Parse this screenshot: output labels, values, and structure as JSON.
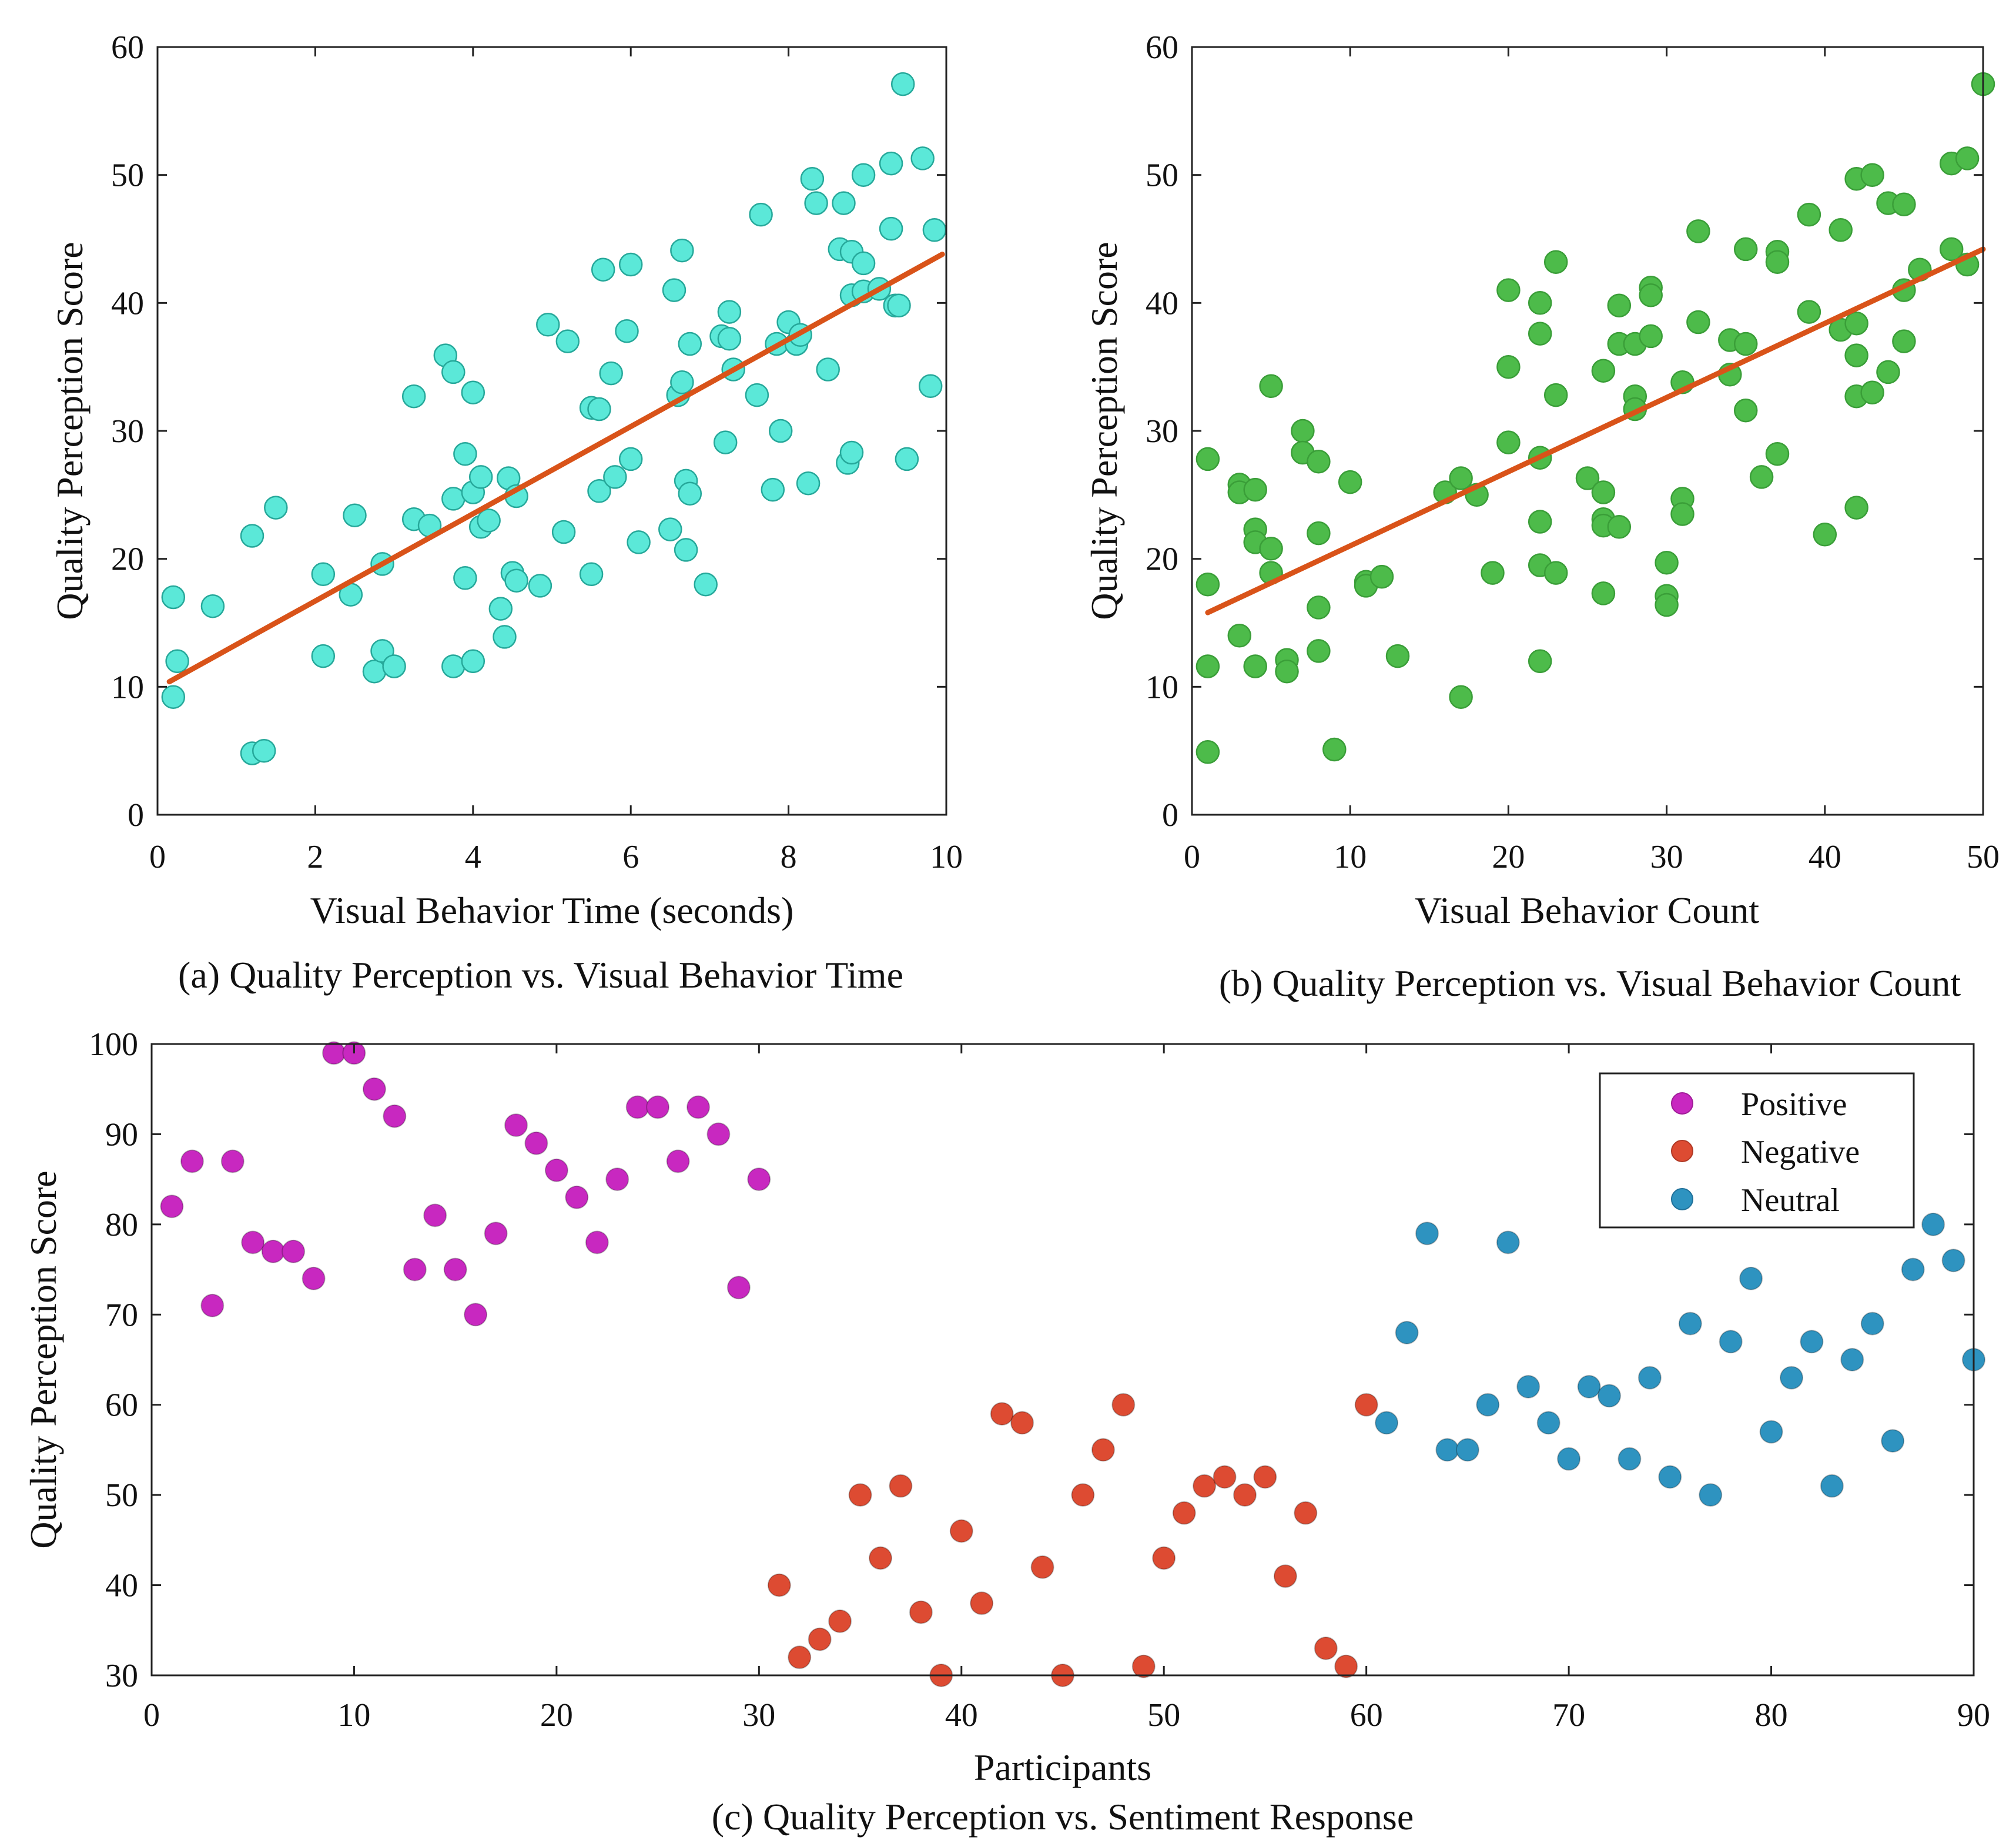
{
  "figure": {
    "panels": [
      {
        "id": "a",
        "caption": "(a) Quality Perception vs. Visual Behavior Time",
        "xlabel": "Visual Behavior Time (seconds)",
        "ylabel": "Quality Perception Score",
        "xticks": [
          "0",
          "2",
          "4",
          "6",
          "8",
          "10"
        ],
        "yticks": [
          "0",
          "10",
          "20",
          "30",
          "40",
          "50",
          "60"
        ]
      },
      {
        "id": "b",
        "caption": "(b) Quality Perception vs. Visual Behavior Count",
        "xlabel": "Visual Behavior Count",
        "ylabel": "Quality Perception Score",
        "xticks": [
          "0",
          "10",
          "20",
          "30",
          "40",
          "50"
        ],
        "yticks": [
          "0",
          "10",
          "20",
          "30",
          "40",
          "50",
          "60"
        ]
      },
      {
        "id": "c",
        "caption": "(c) Quality Perception vs. Sentiment Response",
        "xlabel": "Participants",
        "ylabel": "Quality Perception Score",
        "xticks": [
          "0",
          "10",
          "20",
          "30",
          "40",
          "50",
          "60",
          "70",
          "80",
          "90"
        ],
        "yticks": [
          "30",
          "40",
          "50",
          "60",
          "70",
          "80",
          "90",
          "100"
        ],
        "legend": [
          "Positive",
          "Negative",
          "Neutral"
        ]
      }
    ]
  },
  "chart_data": [
    {
      "type": "scatter",
      "title": "(a) Quality Perception vs. Visual Behavior Time",
      "xlabel": "Visual Behavior Time (seconds)",
      "ylabel": "Quality Perception Score",
      "xlim": [
        0,
        10
      ],
      "ylim": [
        0,
        60
      ],
      "grid": false,
      "marker_color": "#5be8d8",
      "marker_edge": "#26a89a",
      "points": [
        [
          0.2,
          17
        ],
        [
          0.25,
          12
        ],
        [
          0.2,
          9.2
        ],
        [
          0.7,
          16.3
        ],
        [
          1.2,
          4.8
        ],
        [
          1.35,
          5
        ],
        [
          1.2,
          21.8
        ],
        [
          1.5,
          24
        ],
        [
          2.1,
          18.8
        ],
        [
          2.1,
          12.4
        ],
        [
          2.45,
          17.2
        ],
        [
          2.5,
          23.4
        ],
        [
          2.75,
          11.2
        ],
        [
          2.85,
          19.6
        ],
        [
          2.85,
          12.8
        ],
        [
          3.0,
          11.6
        ],
        [
          3.25,
          32.7
        ],
        [
          3.25,
          23.1
        ],
        [
          3.45,
          22.6
        ],
        [
          3.65,
          35.9
        ],
        [
          3.75,
          24.7
        ],
        [
          3.75,
          34.6
        ],
        [
          3.75,
          11.6
        ],
        [
          3.9,
          28.2
        ],
        [
          3.9,
          18.5
        ],
        [
          4.0,
          12
        ],
        [
          4.0,
          25.2
        ],
        [
          4.0,
          33
        ],
        [
          4.1,
          26.4
        ],
        [
          4.1,
          22.5
        ],
        [
          4.2,
          23
        ],
        [
          4.35,
          16.1
        ],
        [
          4.4,
          13.9
        ],
        [
          4.45,
          26.3
        ],
        [
          4.5,
          18.9
        ],
        [
          4.55,
          24.9
        ],
        [
          4.55,
          18.3
        ],
        [
          4.85,
          17.9
        ],
        [
          4.95,
          38.3
        ],
        [
          5.2,
          37
        ],
        [
          5.15,
          22.1
        ],
        [
          5.5,
          18.8
        ],
        [
          5.5,
          31.8
        ],
        [
          5.6,
          31.7
        ],
        [
          5.65,
          42.6
        ],
        [
          5.6,
          25.3
        ],
        [
          5.75,
          34.5
        ],
        [
          5.8,
          26.4
        ],
        [
          5.95,
          37.8
        ],
        [
          6.0,
          43
        ],
        [
          6.0,
          27.8
        ],
        [
          6.1,
          21.3
        ],
        [
          6.5,
          22.3
        ],
        [
          6.55,
          41
        ],
        [
          6.6,
          32.8
        ],
        [
          6.65,
          44.1
        ],
        [
          6.65,
          33.8
        ],
        [
          6.7,
          26.1
        ],
        [
          6.7,
          20.7
        ],
        [
          6.75,
          25.1
        ],
        [
          6.75,
          36.8
        ],
        [
          6.95,
          18
        ],
        [
          7.15,
          37.4
        ],
        [
          7.2,
          29.1
        ],
        [
          7.25,
          39.3
        ],
        [
          7.25,
          37.2
        ],
        [
          7.3,
          34.8
        ],
        [
          7.6,
          32.8
        ],
        [
          7.65,
          46.9
        ],
        [
          7.8,
          25.4
        ],
        [
          7.85,
          36.8
        ],
        [
          7.9,
          30
        ],
        [
          8.0,
          38.5
        ],
        [
          8.1,
          36.8
        ],
        [
          8.15,
          37.5
        ],
        [
          8.25,
          25.9
        ],
        [
          8.3,
          49.7
        ],
        [
          8.35,
          47.8
        ],
        [
          8.5,
          34.8
        ],
        [
          8.65,
          44.2
        ],
        [
          8.7,
          47.8
        ],
        [
          8.75,
          27.5
        ],
        [
          8.8,
          44
        ],
        [
          8.8,
          40.6
        ],
        [
          8.8,
          28.3
        ],
        [
          8.95,
          50
        ],
        [
          8.95,
          43.1
        ],
        [
          8.95,
          40.9
        ],
        [
          9.15,
          41.1
        ],
        [
          9.3,
          50.9
        ],
        [
          9.3,
          45.8
        ],
        [
          9.35,
          39.8
        ],
        [
          9.4,
          39.8
        ],
        [
          9.45,
          57.1
        ],
        [
          9.5,
          27.8
        ],
        [
          9.7,
          51.3
        ],
        [
          9.8,
          33.5
        ],
        [
          9.85,
          45.7
        ]
      ],
      "trend_line": {
        "x": [
          0.15,
          9.95
        ],
        "y": [
          10.4,
          43.8
        ],
        "color": "#d95319"
      }
    },
    {
      "type": "scatter",
      "title": "(b) Quality Perception vs. Visual Behavior Count",
      "xlabel": "Visual Behavior Count",
      "ylabel": "Quality Perception Score",
      "xlim": [
        0,
        50
      ],
      "ylim": [
        0,
        60
      ],
      "grid": false,
      "marker_color": "#4dbb4a",
      "marker_edge": "#3a9e38",
      "points": [
        [
          1,
          27.8
        ],
        [
          1,
          18
        ],
        [
          1,
          11.6
        ],
        [
          1,
          4.9
        ],
        [
          3,
          25.8
        ],
        [
          3,
          25.2
        ],
        [
          3,
          14
        ],
        [
          4,
          25.4
        ],
        [
          4,
          22.3
        ],
        [
          4,
          21.3
        ],
        [
          4,
          11.6
        ],
        [
          5,
          33.5
        ],
        [
          5,
          20.8
        ],
        [
          5,
          18.9
        ],
        [
          6,
          12.1
        ],
        [
          6,
          11.2
        ],
        [
          7,
          30
        ],
        [
          7,
          28.3
        ],
        [
          8,
          27.6
        ],
        [
          8,
          22
        ],
        [
          8,
          16.2
        ],
        [
          8,
          12.8
        ],
        [
          9,
          5.1
        ],
        [
          10,
          26
        ],
        [
          11,
          18.2
        ],
        [
          11,
          17.9
        ],
        [
          12,
          18.6
        ],
        [
          13,
          12.4
        ],
        [
          16,
          25.2
        ],
        [
          17,
          26.3
        ],
        [
          17,
          9.2
        ],
        [
          18,
          25
        ],
        [
          19,
          18.9
        ],
        [
          20,
          41
        ],
        [
          20,
          35
        ],
        [
          20,
          29.1
        ],
        [
          22,
          40
        ],
        [
          22,
          37.6
        ],
        [
          22,
          27.9
        ],
        [
          22,
          22.9
        ],
        [
          22,
          19.5
        ],
        [
          22,
          12
        ],
        [
          23,
          43.2
        ],
        [
          23,
          32.8
        ],
        [
          23,
          18.9
        ],
        [
          25,
          26.3
        ],
        [
          26,
          34.7
        ],
        [
          26,
          25.2
        ],
        [
          26,
          23.1
        ],
        [
          26,
          22.6
        ],
        [
          26,
          17.3
        ],
        [
          27,
          39.8
        ],
        [
          27,
          36.8
        ],
        [
          27,
          22.5
        ],
        [
          28,
          36.8
        ],
        [
          28,
          32.7
        ],
        [
          28,
          31.7
        ],
        [
          29,
          41.2
        ],
        [
          29,
          40.6
        ],
        [
          29,
          37.4
        ],
        [
          30,
          19.7
        ],
        [
          30,
          17.1
        ],
        [
          30,
          16.4
        ],
        [
          31,
          33.8
        ],
        [
          31,
          24.7
        ],
        [
          31,
          23.5
        ],
        [
          32,
          45.6
        ],
        [
          32,
          38.5
        ],
        [
          34,
          37.1
        ],
        [
          34,
          34.4
        ],
        [
          35,
          44.2
        ],
        [
          35,
          36.8
        ],
        [
          35,
          31.6
        ],
        [
          36,
          26.4
        ],
        [
          37,
          44
        ],
        [
          37,
          43.2
        ],
        [
          37,
          28.2
        ],
        [
          39,
          46.9
        ],
        [
          39,
          39.3
        ],
        [
          40,
          21.9
        ],
        [
          41,
          45.7
        ],
        [
          41,
          37.9
        ],
        [
          42,
          49.7
        ],
        [
          42,
          38.4
        ],
        [
          42,
          35.9
        ],
        [
          42,
          32.7
        ],
        [
          42,
          24
        ],
        [
          43,
          50
        ],
        [
          43,
          33
        ],
        [
          44,
          47.8
        ],
        [
          44,
          34.6
        ],
        [
          45,
          47.7
        ],
        [
          45,
          41
        ],
        [
          45,
          37
        ],
        [
          46,
          42.6
        ],
        [
          48,
          50.9
        ],
        [
          48,
          44.2
        ],
        [
          49,
          51.3
        ],
        [
          49,
          43
        ],
        [
          50,
          57.1
        ]
      ],
      "trend_line": {
        "x": [
          1,
          50
        ],
        "y": [
          15.8,
          44.2
        ],
        "color": "#d95319"
      }
    },
    {
      "type": "scatter",
      "title": "(c) Quality Perception vs. Sentiment Response",
      "xlabel": "Participants",
      "ylabel": "Quality Perception Score",
      "xlim": [
        0,
        90
      ],
      "ylim": [
        30,
        100
      ],
      "grid": false,
      "legend_position": "top-right",
      "series": [
        {
          "name": "Positive",
          "color": "#c828c0",
          "x": [
            1,
            2,
            3,
            4,
            5,
            6,
            7,
            8,
            9,
            10,
            11,
            12,
            13,
            14,
            15,
            16,
            17,
            18,
            19,
            20,
            21,
            22,
            23,
            24,
            25,
            26,
            27,
            28,
            29,
            30
          ],
          "y": [
            82,
            87,
            71,
            87,
            78,
            77,
            77,
            74,
            99,
            99,
            95,
            92,
            75,
            81,
            75,
            70,
            79,
            91,
            89,
            86,
            83,
            78,
            85,
            93,
            93,
            87,
            93,
            90,
            73,
            85
          ]
        },
        {
          "name": "Negative",
          "color": "#dd4b32",
          "x": [
            31,
            32,
            33,
            34,
            35,
            36,
            37,
            38,
            39,
            40,
            41,
            42,
            43,
            44,
            45,
            46,
            47,
            48,
            49,
            50,
            51,
            52,
            53,
            54,
            55,
            56,
            57,
            58,
            59,
            60
          ],
          "y": [
            40,
            32,
            34,
            36,
            50,
            43,
            51,
            37,
            30,
            46,
            38,
            59,
            58,
            42,
            30,
            50,
            55,
            60,
            31,
            43,
            48,
            51,
            52,
            50,
            52,
            41,
            48,
            33,
            31,
            60
          ]
        },
        {
          "name": "Neutral",
          "color": "#2e93c0",
          "x": [
            61,
            62,
            63,
            64,
            65,
            66,
            67,
            68,
            69,
            70,
            71,
            72,
            73,
            74,
            75,
            76,
            77,
            78,
            79,
            80,
            81,
            82,
            83,
            84,
            85,
            86,
            87,
            88,
            89,
            90
          ],
          "y": [
            58,
            68,
            79,
            55,
            55,
            60,
            78,
            62,
            58,
            54,
            62,
            61,
            54,
            63,
            52,
            69,
            50,
            67,
            74,
            57,
            63,
            67,
            51,
            65,
            69,
            56,
            75,
            80,
            76,
            65
          ]
        }
      ]
    }
  ]
}
